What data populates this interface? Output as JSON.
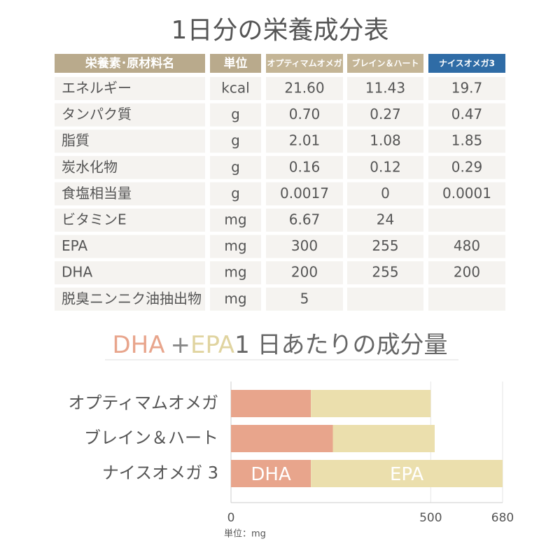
{
  "page_title": "1日分の栄養成分表",
  "table": {
    "header": [
      "栄養素･原材料名",
      "単位",
      "オプティマムオメガ",
      "ブレイン＆ハート",
      "ナイスオメガ3"
    ],
    "rows": [
      [
        "エネルギー",
        "kcal",
        "21.60",
        "11.43",
        "19.7"
      ],
      [
        "タンパク質",
        "g",
        "0.70",
        "0.27",
        "0.47"
      ],
      [
        "脂質",
        "g",
        "2.01",
        "1.08",
        "1.85"
      ],
      [
        "炭水化物",
        "g",
        "0.16",
        "0.12",
        "0.29"
      ],
      [
        "食塩相当量",
        "g",
        "0.0017",
        "0",
        "0.0001"
      ],
      [
        "ビタミンE",
        "mg",
        "6.67",
        "24",
        null
      ],
      [
        "EPA",
        "mg",
        "300",
        "255",
        "480"
      ],
      [
        "DHA",
        "mg",
        "200",
        "255",
        "200"
      ],
      [
        "脱臭ニンニク油抽出物",
        "mg",
        "5",
        null,
        null
      ]
    ]
  },
  "chart_data": {
    "type": "stacked-bar-horizontal",
    "title": [
      "DHA",
      "+",
      "EPA",
      "1 日あたりの成分量"
    ],
    "categories": [
      "オプティマムオメガ",
      "ブレイン＆ハート",
      "ナイスオメガ 3"
    ],
    "series": [
      {
        "name": "DHA",
        "color": "#e8a58c",
        "values": [
          200,
          255,
          200
        ]
      },
      {
        "name": "EPA",
        "color": "#ebdfad",
        "values": [
          300,
          255,
          480
        ]
      }
    ],
    "xlim": [
      0,
      680
    ],
    "xticks": [
      0,
      500,
      680
    ],
    "x_label": "単位：mg",
    "grid": true
  }
}
